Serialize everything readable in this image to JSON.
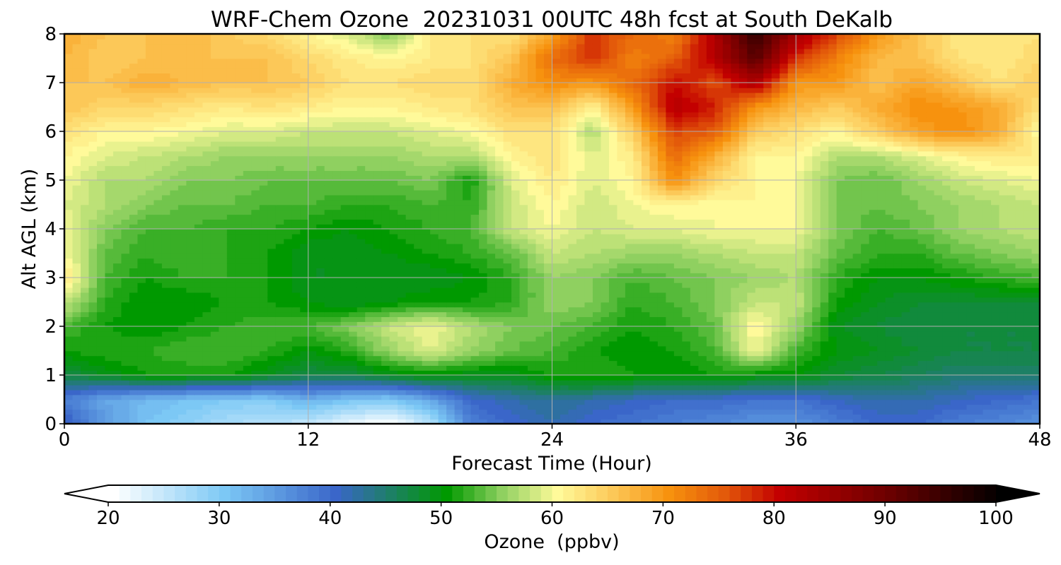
{
  "chart_data": {
    "type": "heatmap",
    "title": "WRF-Chem Ozone  20231031 00UTC 48h fcst at South DeKalb",
    "xlabel": "Forecast Time (Hour)",
    "ylabel": "Alt AGL (km)",
    "xlim": [
      0,
      48
    ],
    "ylim": [
      0,
      8
    ],
    "x_ticks": [
      0,
      12,
      24,
      36,
      48
    ],
    "y_ticks": [
      0,
      1,
      2,
      3,
      4,
      5,
      6,
      7,
      8
    ],
    "grid": true,
    "colorbar": {
      "label": "Ozone  (ppbv)",
      "min": 20,
      "max": 100,
      "ticks": [
        20,
        30,
        40,
        50,
        60,
        70,
        80,
        90,
        100
      ],
      "extend": "both",
      "stops": [
        {
          "value": 20,
          "color": "#ffffff"
        },
        {
          "value": 30,
          "color": "#7cc8f5"
        },
        {
          "value": 40,
          "color": "#3a66c9"
        },
        {
          "value": 50,
          "color": "#009900"
        },
        {
          "value": 55,
          "color": "#8fd060"
        },
        {
          "value": 60,
          "color": "#fffa9a"
        },
        {
          "value": 65,
          "color": "#fcc858"
        },
        {
          "value": 70,
          "color": "#f7920e"
        },
        {
          "value": 75,
          "color": "#e35a0a"
        },
        {
          "value": 80,
          "color": "#c30000"
        },
        {
          "value": 90,
          "color": "#6a0000"
        },
        {
          "value": 100,
          "color": "#000000"
        }
      ]
    },
    "x": [
      0,
      2,
      4,
      6,
      8,
      10,
      12,
      14,
      16,
      18,
      20,
      22,
      24,
      26,
      28,
      30,
      32,
      34,
      36,
      38,
      40,
      42,
      44,
      46,
      48
    ],
    "y": [
      0,
      0.5,
      1,
      1.5,
      2,
      2.5,
      3,
      3.5,
      4,
      4.5,
      5,
      5.5,
      6,
      6.5,
      7,
      7.5,
      8
    ],
    "z": [
      [
        42,
        35,
        31,
        29,
        27,
        26,
        25,
        22,
        20,
        26,
        38,
        40,
        42,
        40,
        39,
        38,
        37,
        36,
        36,
        38,
        40,
        40,
        38,
        37,
        36
      ],
      [
        38,
        34,
        32,
        31,
        30,
        30,
        33,
        31,
        30,
        34,
        40,
        42,
        43,
        42,
        41,
        40,
        40,
        39,
        39,
        41,
        42,
        42,
        41,
        40,
        39
      ],
      [
        47,
        49,
        51,
        51,
        51,
        49,
        47,
        47,
        49,
        50,
        49,
        49,
        51,
        52,
        51,
        50,
        51,
        50,
        50,
        48,
        47,
        46,
        45,
        45,
        45
      ],
      [
        51,
        52,
        52,
        53,
        53,
        52,
        50,
        52,
        56,
        59,
        56,
        54,
        53,
        51,
        50,
        51,
        53,
        60,
        53,
        50,
        49,
        48,
        47,
        47,
        47
      ],
      [
        53,
        51,
        50,
        51,
        52,
        53,
        53,
        55,
        58,
        60,
        57,
        55,
        54,
        53,
        51,
        52,
        54,
        61,
        56,
        49,
        48,
        47,
        47,
        47,
        47
      ],
      [
        58,
        52,
        50,
        50,
        51,
        51,
        50,
        49,
        50,
        51,
        51,
        52,
        56,
        55,
        52,
        53,
        55,
        58,
        58,
        51,
        49,
        48,
        48,
        48,
        48
      ],
      [
        63,
        53,
        51,
        52,
        52,
        51,
        49,
        49,
        49,
        49,
        50,
        52,
        56,
        55,
        53,
        54,
        55,
        56,
        57,
        52,
        50,
        50,
        51,
        52,
        53
      ],
      [
        60,
        54,
        52,
        53,
        52,
        51,
        49,
        49,
        50,
        51,
        52,
        54,
        58,
        57,
        56,
        56,
        57,
        58,
        58,
        54,
        52,
        52,
        54,
        55,
        56
      ],
      [
        60,
        55,
        53,
        53,
        52,
        52,
        51,
        50,
        51,
        52,
        53,
        58,
        60,
        58,
        59,
        59,
        60,
        60,
        60,
        55,
        53,
        54,
        56,
        57,
        58
      ],
      [
        59,
        57,
        55,
        54,
        54,
        53,
        53,
        52,
        52,
        53,
        52,
        58,
        61,
        58,
        60,
        61,
        60,
        61,
        60,
        55,
        54,
        55,
        56,
        57,
        58
      ],
      [
        60,
        57,
        57,
        55,
        55,
        54,
        54,
        54,
        54,
        55,
        51,
        59,
        62,
        59,
        61,
        71,
        64,
        61,
        60,
        55,
        54,
        56,
        58,
        59,
        60
      ],
      [
        61,
        59,
        58,
        57,
        56,
        56,
        56,
        56,
        56,
        57,
        57,
        61,
        63,
        59,
        62,
        74,
        68,
        61,
        61,
        57,
        57,
        59,
        61,
        62,
        62
      ],
      [
        63,
        61,
        61,
        60,
        59,
        59,
        58,
        58,
        58,
        59,
        60,
        63,
        63,
        57,
        65,
        77,
        75,
        65,
        63,
        61,
        65,
        69,
        71,
        68,
        60
      ],
      [
        66,
        64,
        64,
        63,
        62,
        63,
        62,
        61,
        61,
        62,
        63,
        66,
        66,
        61,
        70,
        82,
        79,
        70,
        67,
        65,
        68,
        71,
        70,
        68,
        63
      ],
      [
        66,
        66,
        68,
        67,
        66,
        66,
        65,
        63,
        63,
        64,
        63,
        68,
        71,
        70,
        74,
        80,
        76,
        83,
        70,
        70,
        66,
        69,
        66,
        63,
        65
      ],
      [
        67,
        65,
        66,
        66,
        66,
        66,
        64,
        62,
        61,
        62,
        63,
        66,
        74,
        78,
        72,
        75,
        82,
        92,
        78,
        72,
        67,
        66,
        63,
        62,
        64
      ],
      [
        68,
        66,
        66,
        67,
        65,
        64,
        61,
        59,
        55,
        62,
        63,
        63,
        69,
        78,
        74,
        72,
        83,
        96,
        84,
        77,
        70,
        66,
        62,
        62,
        63
      ]
    ]
  }
}
